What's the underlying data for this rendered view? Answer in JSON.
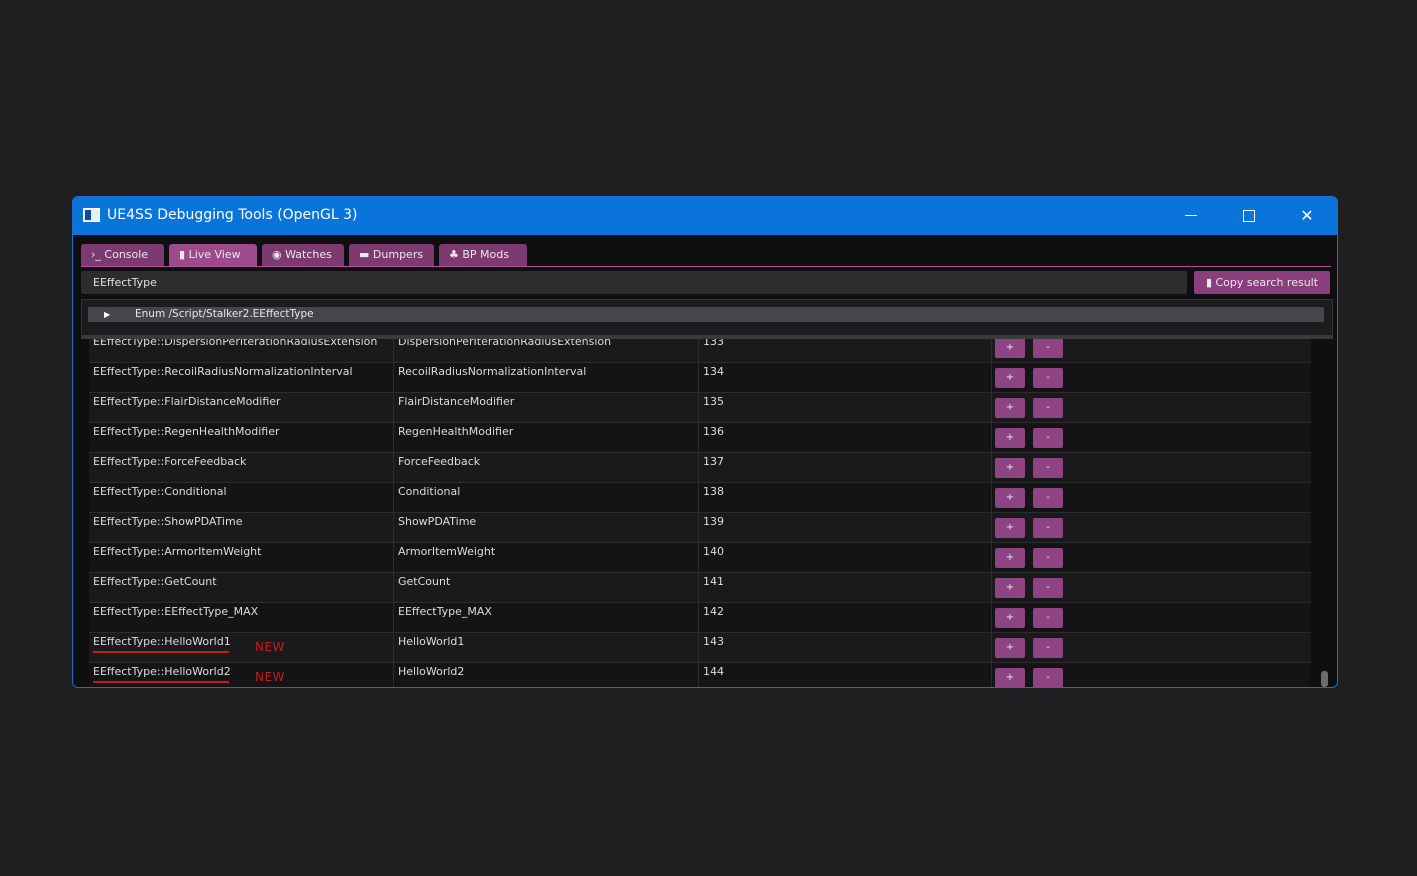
{
  "window": {
    "title": "UE4SS Debugging Tools (OpenGL 3)",
    "minimize_glyph": "",
    "close_glyph": "✕"
  },
  "tabs": [
    {
      "label": "Console",
      "icon": "terminal-icon",
      "icon_glyph": "›_"
    },
    {
      "label": "Live View",
      "icon": "file-icon",
      "icon_glyph": "▮"
    },
    {
      "label": "Watches",
      "icon": "eye-icon",
      "icon_glyph": "◉"
    },
    {
      "label": "Dumpers",
      "icon": "archive-icon",
      "icon_glyph": "▬"
    },
    {
      "label": "BP Mods",
      "icon": "puzzle-icon",
      "icon_glyph": "♣"
    }
  ],
  "search": {
    "value": "EEffectType"
  },
  "copy_button": {
    "icon_glyph": "▮",
    "label": "Copy search result"
  },
  "tree": {
    "arrow": "▶",
    "label": "Enum /Script/Stalker2.EEffectType"
  },
  "buttons": {
    "plus": "+",
    "minus": "-"
  },
  "new_tag": "NEW",
  "rows": [
    {
      "full": "EEffectType::DispersionPerIterationRadiusExtension",
      "name": "DispersionPerIterationRadiusExtension",
      "value": "133"
    },
    {
      "full": "EEffectType::RecoilRadiusNormalizationInterval",
      "name": "RecoilRadiusNormalizationInterval",
      "value": "134"
    },
    {
      "full": "EEffectType::FlairDistanceModifier",
      "name": "FlairDistanceModifier",
      "value": "135"
    },
    {
      "full": "EEffectType::RegenHealthModifier",
      "name": "RegenHealthModifier",
      "value": "136"
    },
    {
      "full": "EEffectType::ForceFeedback",
      "name": "ForceFeedback",
      "value": "137"
    },
    {
      "full": "EEffectType::Conditional",
      "name": "Conditional",
      "value": "138"
    },
    {
      "full": "EEffectType::ShowPDATime",
      "name": "ShowPDATime",
      "value": "139"
    },
    {
      "full": "EEffectType::ArmorItemWeight",
      "name": "ArmorItemWeight",
      "value": "140"
    },
    {
      "full": "EEffectType::GetCount",
      "name": "GetCount",
      "value": "141"
    },
    {
      "full": "EEffectType::EEffectType_MAX",
      "name": "EEffectType_MAX",
      "value": "142"
    },
    {
      "full": "EEffectType::HelloWorld1",
      "name": "HelloWorld1",
      "value": "143",
      "is_new": true
    },
    {
      "full": "EEffectType::HelloWorld2",
      "name": "HelloWorld2",
      "value": "144",
      "is_new": true
    }
  ],
  "colors": {
    "titlebar": "#0a74da",
    "tab": "#7d3a70",
    "accent_button": "#8e4482",
    "new_marker": "#c21d1d"
  }
}
